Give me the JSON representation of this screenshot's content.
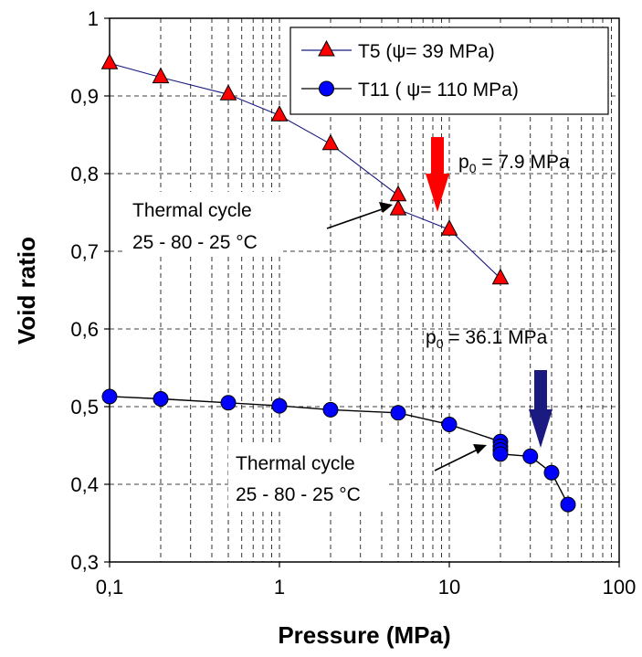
{
  "chart_data": {
    "type": "scatter",
    "xscale": "log",
    "xlabel": "Pressure (MPa)",
    "ylabel": "Void ratio",
    "xlim": [
      0.1,
      100
    ],
    "ylim": [
      0.3,
      1.0
    ],
    "grid": "dashed",
    "legend_position": "top-right",
    "x_tick_labels": [
      "0,1",
      "1",
      "10",
      "100"
    ],
    "x_tick_values": [
      0.1,
      1,
      10,
      100
    ],
    "y_tick_labels": [
      "0,3",
      "0,4",
      "0,5",
      "0,6",
      "0,7",
      "0,8",
      "0,9",
      "1"
    ],
    "y_tick_values": [
      0.3,
      0.4,
      0.5,
      0.6,
      0.7,
      0.8,
      0.9,
      1.0
    ],
    "series": [
      {
        "name": "T5 (ψ= 39 MPa)",
        "marker": "triangle",
        "marker_color": "#ff0000",
        "line_color": "#1a1a80",
        "x": [
          0.1,
          0.2,
          0.5,
          1,
          2,
          5,
          5,
          10,
          20
        ],
        "y": [
          0.942,
          0.924,
          0.902,
          0.875,
          0.838,
          0.772,
          0.754,
          0.728,
          0.665
        ]
      },
      {
        "name": "T11 ( ψ= 110 MPa)",
        "marker": "circle",
        "marker_color": "#0000ff",
        "line_color": "#000000",
        "x": [
          0.1,
          0.2,
          0.5,
          1,
          2,
          5,
          10,
          20,
          20,
          20,
          20,
          30,
          40,
          50
        ],
        "y": [
          0.513,
          0.51,
          0.505,
          0.501,
          0.496,
          0.492,
          0.477,
          0.455,
          0.449,
          0.444,
          0.439,
          0.436,
          0.415,
          0.374
        ]
      }
    ],
    "annotations": [
      {
        "id": "p0-t5",
        "text_main": "p",
        "text_sub": "0",
        "text_rest": " = 7.9 MPa",
        "x": 7.9,
        "arrow_color": "#ff0000"
      },
      {
        "id": "p0-t11",
        "text_main": "p",
        "text_sub": "0",
        "text_rest": " = 36.1 MPa",
        "x": 36.1,
        "arrow_color": "#1a1a80"
      },
      {
        "id": "thermal-t5",
        "line1": "Thermal cycle",
        "line2": "25 - 80 - 25 °C"
      },
      {
        "id": "thermal-t11",
        "line1": "Thermal cycle",
        "line2": "25 - 80 - 25 °C"
      }
    ]
  }
}
